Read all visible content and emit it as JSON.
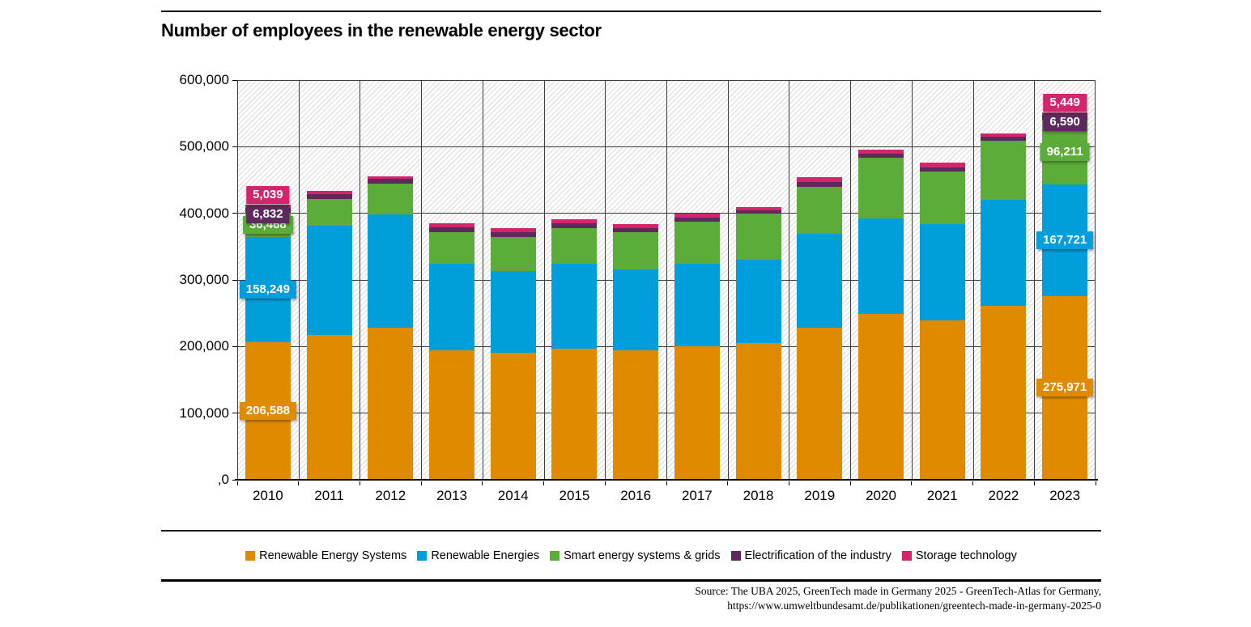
{
  "header": {
    "title": "Number of employees in the renewable energy sector"
  },
  "chart_data": {
    "type": "bar",
    "subtype": "stacked",
    "title": "Number of employees in the renewable energy sector",
    "categories": [
      "2010",
      "2011",
      "2012",
      "2013",
      "2014",
      "2015",
      "2016",
      "2017",
      "2018",
      "2019",
      "2020",
      "2021",
      "2022",
      "2023"
    ],
    "series": [
      {
        "name": "Renewable Energy Systems",
        "color": "#E08A00",
        "values": [
          206588,
          217800,
          228400,
          193800,
          190200,
          196300,
          194500,
          199900,
          205200,
          227900,
          249000,
          238900,
          261600,
          275971
        ]
      },
      {
        "name": "Renewable Energies",
        "color": "#009EDB",
        "values": [
          158249,
          163900,
          170300,
          130000,
          123400,
          128200,
          121300,
          124900,
          125700,
          141600,
          142800,
          145200,
          158500,
          167721
        ]
      },
      {
        "name": "Smart energy systems & grids",
        "color": "#5BAC38",
        "values": [
          36468,
          39700,
          46200,
          48000,
          51100,
          53500,
          55500,
          62100,
          68200,
          70100,
          91200,
          78600,
          88500,
          96211
        ]
      },
      {
        "name": "Electrification of the industry",
        "color": "#5E2A5D",
        "values": [
          6832,
          7100,
          6800,
          7500,
          7200,
          7000,
          6500,
          6900,
          5500,
          6900,
          6500,
          6500,
          6100,
          6590
        ]
      },
      {
        "name": "Storage technology",
        "color": "#D4256C",
        "values": [
          5039,
          5000,
          4100,
          6000,
          6400,
          6000,
          6000,
          5600,
          5300,
          7300,
          5700,
          6500,
          5700,
          5449
        ]
      }
    ],
    "ylim": [
      0,
      600000
    ],
    "y_tick_labels": [
      "600,000",
      "500,000",
      "400,000",
      "300,000",
      "200,000",
      "100,000",
      ",0"
    ],
    "grid": true,
    "plot_background": "diagonal-hatch",
    "legend_position": "bottom",
    "data_labels": {
      "labeled_categories": [
        "2010",
        "2023"
      ]
    },
    "labeled_values": {
      "2010": [
        "206,588",
        "158,249",
        "36,468",
        "6,832",
        "5,039"
      ],
      "2023": [
        "275,971",
        "167,721",
        "96,211",
        "6,590",
        "5,449"
      ]
    }
  },
  "footer": {
    "source_line1": "Source: The UBA 2025, GreenTech made in Germany 2025 - GreenTech-Atlas for Germany,",
    "source_line2": "https://www.umweltbundesamt.de/publikationen/greentech-made-in-germany-2025-0"
  }
}
